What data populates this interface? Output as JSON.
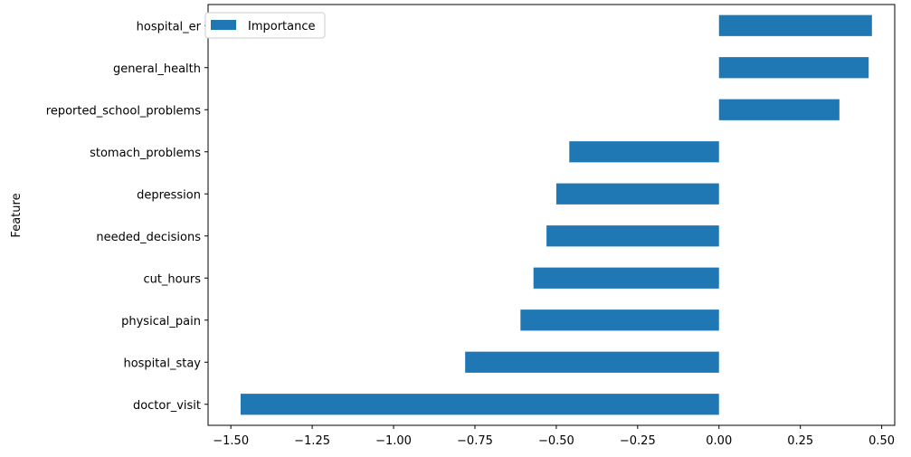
{
  "chart_data": {
    "type": "bar",
    "orientation": "horizontal",
    "categories": [
      "doctor_visit",
      "hospital_stay",
      "physical_pain",
      "cut_hours",
      "needed_decisions",
      "depression",
      "stomach_problems",
      "reported_school_problems",
      "general_health",
      "hospital_er"
    ],
    "series": [
      {
        "name": "Importance",
        "color": "#1f77b4",
        "values": [
          -1.47,
          -0.78,
          -0.61,
          -0.57,
          -0.53,
          -0.5,
          -0.46,
          0.37,
          0.46,
          0.47
        ]
      }
    ],
    "title": "",
    "xlabel": "",
    "ylabel": "Feature",
    "xlim": [
      -1.57,
      0.54
    ],
    "xticks": [
      -1.5,
      -1.25,
      -1.0,
      -0.75,
      -0.5,
      -0.25,
      0.0,
      0.25,
      0.5
    ],
    "xtick_labels": [
      "−1.50",
      "−1.25",
      "−1.00",
      "−0.75",
      "−0.50",
      "−0.25",
      "0.00",
      "0.25",
      "0.50"
    ],
    "grid": false,
    "legend_position": "upper-left"
  }
}
